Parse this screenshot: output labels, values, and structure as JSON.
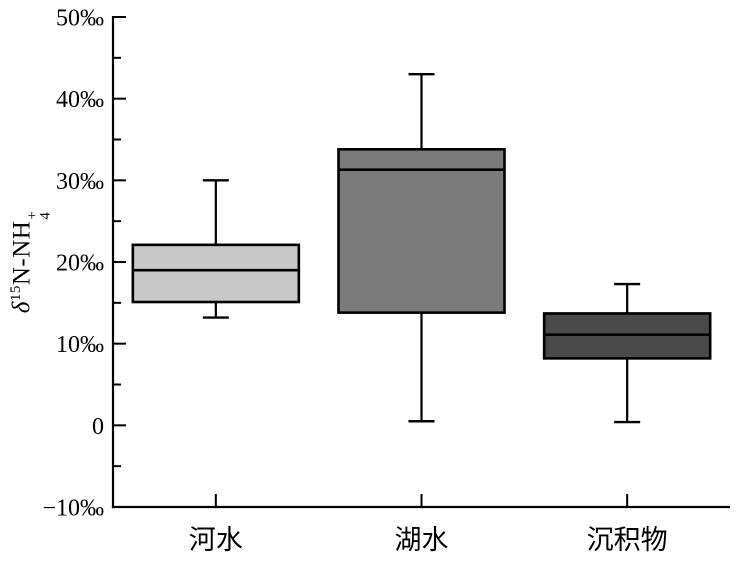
{
  "chart_data": {
    "type": "boxplot",
    "title": "",
    "y_axis": {
      "label_parts": {
        "delta": "δ",
        "isotope_sup": "15",
        "body": "N-NH",
        "sub": "4",
        "sup": "+"
      },
      "min": -10,
      "max": 50,
      "minor_step": 5,
      "ticks": [
        {
          "value": 50,
          "label": "50‰"
        },
        {
          "value": 40,
          "label": "40‰"
        },
        {
          "value": 30,
          "label": "30‰"
        },
        {
          "value": 20,
          "label": "20‰"
        },
        {
          "value": 10,
          "label": "10‰"
        },
        {
          "value": 0,
          "label": "0"
        },
        {
          "value": -10,
          "label": "−10‰"
        }
      ]
    },
    "categories": [
      "河水",
      "湖水",
      "沉积物"
    ],
    "series": [
      {
        "id": "river-water",
        "category": "河水",
        "whisker_low": 13.2,
        "q1": 15.1,
        "median": 19.0,
        "q3": 22.1,
        "whisker_high": 30.0,
        "fill": "#c8c8c8"
      },
      {
        "id": "lake-water",
        "category": "湖水",
        "whisker_low": 0.5,
        "q1": 13.8,
        "median": 31.3,
        "q3": 33.8,
        "whisker_high": 43.0,
        "fill": "#7a7a7a"
      },
      {
        "id": "sediment",
        "category": "沉积物",
        "whisker_low": 0.4,
        "q1": 8.2,
        "median": 11.1,
        "q3": 13.7,
        "whisker_high": 17.3,
        "fill": "#4a4a4a"
      }
    ],
    "colors": {
      "line": "#000000",
      "background": "#ffffff"
    },
    "legend": false,
    "grid": false
  }
}
